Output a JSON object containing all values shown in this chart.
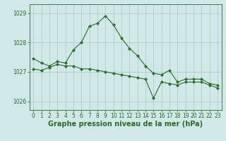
{
  "line1_x": [
    0,
    1,
    2,
    3,
    4,
    5,
    6,
    7,
    8,
    9,
    10,
    11,
    12,
    13,
    14,
    15,
    16,
    17,
    18,
    19,
    20,
    21,
    22,
    23
  ],
  "line1_y": [
    1027.45,
    1027.3,
    1027.2,
    1027.35,
    1027.3,
    1027.75,
    1028.0,
    1028.55,
    1028.65,
    1028.9,
    1028.6,
    1028.15,
    1027.8,
    1027.55,
    1027.2,
    1026.95,
    1026.9,
    1027.05,
    1026.65,
    1026.75,
    1026.75,
    1026.75,
    1026.6,
    1026.55
  ],
  "line2_x": [
    0,
    1,
    2,
    3,
    4,
    5,
    6,
    7,
    8,
    9,
    10,
    11,
    12,
    13,
    14,
    15,
    16,
    17,
    18,
    19,
    20,
    21,
    22,
    23
  ],
  "line2_y": [
    1027.1,
    1027.05,
    1027.15,
    1027.25,
    1027.2,
    1027.2,
    1027.1,
    1027.1,
    1027.05,
    1027.0,
    1026.95,
    1026.9,
    1026.85,
    1026.8,
    1026.75,
    1026.1,
    1026.65,
    1026.6,
    1026.55,
    1026.65,
    1026.65,
    1026.65,
    1026.55,
    1026.45
  ],
  "line_color": "#2d6a2d",
  "bg_color": "#d0e8e8",
  "grid_color": "#a8c8c8",
  "xlabel": "Graphe pression niveau de la mer (hPa)",
  "ylim": [
    1025.7,
    1029.3
  ],
  "xlim": [
    -0.5,
    23.5
  ],
  "yticks": [
    1026,
    1027,
    1028,
    1029
  ],
  "xticks": [
    0,
    1,
    2,
    3,
    4,
    5,
    6,
    7,
    8,
    9,
    10,
    11,
    12,
    13,
    14,
    15,
    16,
    17,
    18,
    19,
    20,
    21,
    22,
    23
  ],
  "tick_fontsize": 5.5,
  "label_fontsize": 7.0
}
